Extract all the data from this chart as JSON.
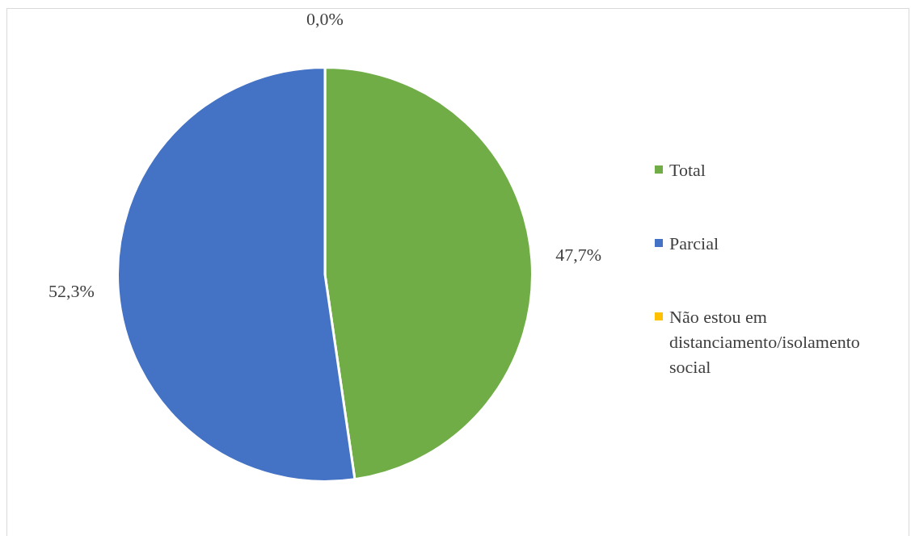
{
  "chart_data": {
    "type": "pie",
    "categories": [
      "Total",
      "Parcial",
      "Não estou em distanciamento/isolamento social"
    ],
    "values": [
      47.7,
      52.3,
      0.0
    ],
    "colors": [
      "#70ad47",
      "#4472c4",
      "#ffc000"
    ],
    "value_labels": [
      "47,7%",
      "52,3%",
      "0,0%"
    ],
    "legend": "right"
  }
}
